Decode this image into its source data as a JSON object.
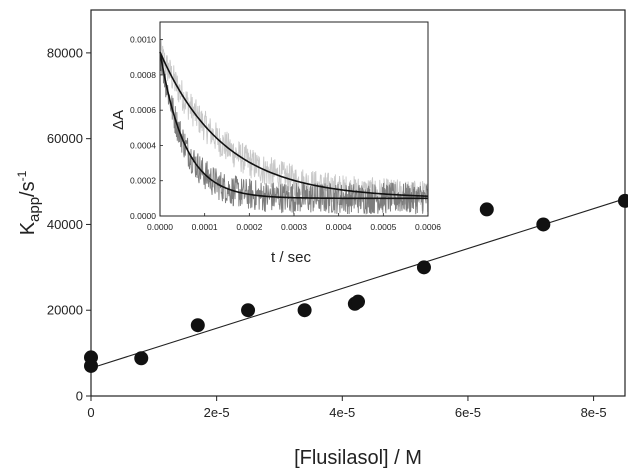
{
  "chart_data": [
    {
      "type": "scatter",
      "title": "",
      "xlabel": "[Flusilasol] / M",
      "ylabel_main": "K",
      "ylabel_sub": "app",
      "ylabel_rest": "/s",
      "ylabel_sup": "-1",
      "xlim": [
        0,
        8.5e-05
      ],
      "ylim": [
        0,
        90000
      ],
      "xticks": [
        0,
        2e-05,
        4e-05,
        6e-05,
        8e-05
      ],
      "xtick_labels": [
        "0",
        "2e-5",
        "4e-5",
        "6e-5",
        "8e-5"
      ],
      "yticks": [
        0,
        20000,
        40000,
        60000,
        80000
      ],
      "ytick_labels": [
        "0",
        "20000",
        "40000",
        "60000",
        "80000"
      ],
      "series": [
        {
          "kind": "points",
          "x": [
            0,
            0,
            8e-06,
            1.7e-05,
            2.5e-05,
            3.4e-05,
            4.2e-05,
            4.25e-05,
            5.3e-05,
            6.3e-05,
            7.2e-05,
            8.5e-05
          ],
          "y": [
            9000,
            7000,
            8800,
            16500,
            20000,
            20000,
            21500,
            22000,
            30000,
            43500,
            40000,
            45500
          ]
        },
        {
          "kind": "fit-line",
          "x": [
            0,
            8.5e-05
          ],
          "y": [
            6500,
            46000
          ]
        }
      ],
      "colors": {
        "points": "#111111",
        "line": "#222222"
      }
    },
    {
      "type": "line",
      "title": "",
      "xlabel": "t / sec",
      "ylabel": "ΔA",
      "xlim": [
        0,
        0.0006
      ],
      "ylim": [
        0,
        0.0011
      ],
      "xticks": [
        0,
        0.0001,
        0.0002,
        0.0003,
        0.0004,
        0.0005,
        0.0006
      ],
      "xtick_labels": [
        "0.0000",
        "0.0001",
        "0.0002",
        "0.0003",
        "0.0004",
        "0.0005",
        "0.0006"
      ],
      "yticks": [
        0,
        0.0002,
        0.0004,
        0.0006,
        0.0008,
        0.001
      ],
      "ytick_labels": [
        "0.0000",
        "0.0002",
        "0.0004",
        "0.0006",
        "0.0008",
        "0.0010"
      ],
      "series": [
        {
          "kind": "trace-light",
          "model": {
            "amplitude": 0.00083,
            "offset": 0.0001,
            "rate": 7000
          },
          "noise": 9e-05,
          "color": "#c8c8c8"
        },
        {
          "kind": "trace-dark",
          "model": {
            "amplitude": 0.00083,
            "offset": 0.0001,
            "rate": 18000
          },
          "noise": 9e-05,
          "color": "#7d7d7d"
        },
        {
          "kind": "fit-slow",
          "model": {
            "amplitude": 0.00083,
            "offset": 0.0001,
            "rate": 7000
          },
          "color": "#111111"
        },
        {
          "kind": "fit-fast",
          "model": {
            "amplitude": 0.00083,
            "offset": 0.0001,
            "rate": 18000
          },
          "color": "#111111"
        }
      ]
    }
  ]
}
